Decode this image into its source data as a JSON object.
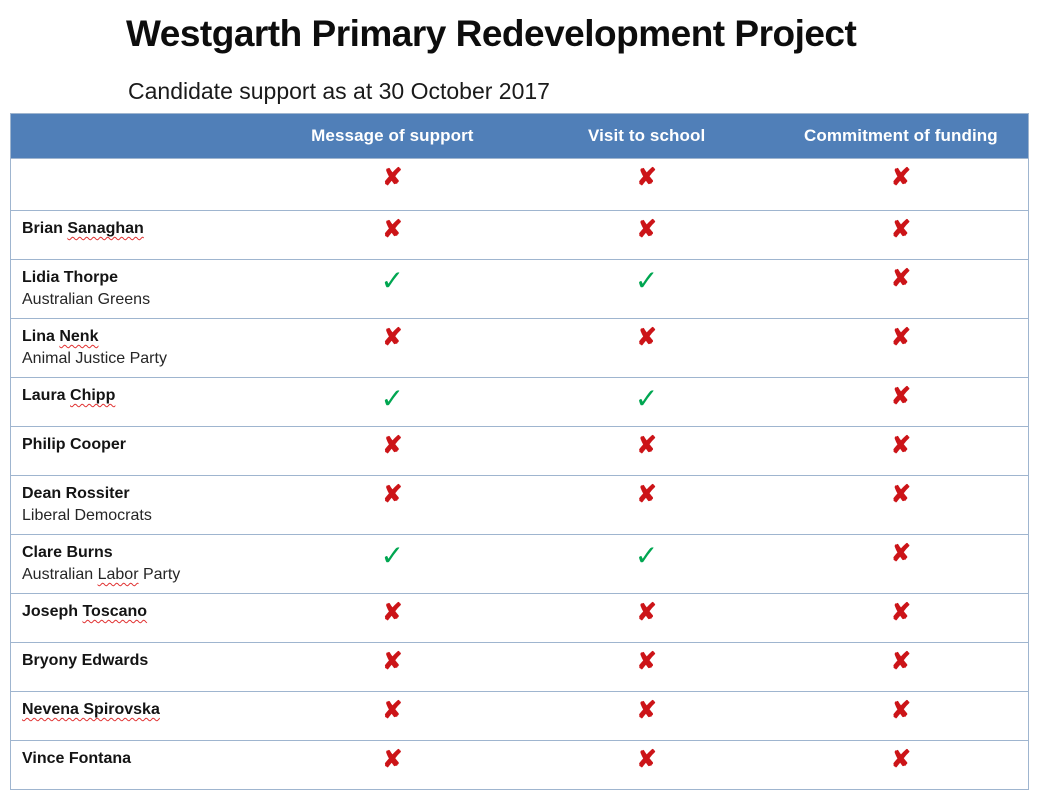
{
  "slide": {
    "title": "Westgarth Primary Redevelopment Project",
    "subtitle": "Candidate support as at 30 October 2017"
  },
  "table": {
    "columns": [
      "Message of support",
      "Visit to school",
      "Commitment of funding"
    ],
    "marks": {
      "check": "✓",
      "cross": "✘"
    },
    "colors": {
      "header_bg": "#507FB8",
      "header_text": "#FFFFFF",
      "border": "#9FB5CF",
      "check": "#00A651",
      "cross": "#CC1418",
      "spellcheck_underline": "#E03030"
    },
    "rows": [
      {
        "name": "",
        "party": "",
        "marks": [
          "cross",
          "cross",
          "cross"
        ]
      },
      {
        "name": "Brian Sanaghan",
        "wavy": "Sanaghan",
        "party": "",
        "marks": [
          "cross",
          "cross",
          "cross"
        ]
      },
      {
        "name": "Lidia Thorpe",
        "party": "Australian Greens",
        "marks": [
          "check",
          "check",
          "cross"
        ]
      },
      {
        "name": "Lina Nenk",
        "wavy": "Nenk",
        "party": "Animal Justice Party",
        "marks": [
          "cross",
          "cross",
          "cross"
        ]
      },
      {
        "name": "Laura Chipp",
        "wavy": "Chipp",
        "party": "",
        "marks": [
          "check",
          "check",
          "cross"
        ]
      },
      {
        "name": "Philip Cooper",
        "party": "",
        "marks": [
          "cross",
          "cross",
          "cross"
        ]
      },
      {
        "name": "Dean Rossiter",
        "party": "Liberal Democrats",
        "marks": [
          "cross",
          "cross",
          "cross"
        ]
      },
      {
        "name": "Clare Burns",
        "party": "Australian Labor Party",
        "party_wavy": "Labor",
        "marks": [
          "check",
          "check",
          "cross"
        ]
      },
      {
        "name": "Joseph Toscano",
        "wavy": "Toscano",
        "party": "",
        "marks": [
          "cross",
          "cross",
          "cross"
        ]
      },
      {
        "name": "Bryony Edwards",
        "party": "",
        "marks": [
          "cross",
          "cross",
          "cross"
        ]
      },
      {
        "name": "Nevena Spirovska",
        "wavy": "Nevena Spirovska",
        "party": "",
        "marks": [
          "cross",
          "cross",
          "cross"
        ]
      },
      {
        "name": "Vince Fontana",
        "party": "",
        "marks": [
          "cross",
          "cross",
          "cross"
        ]
      }
    ]
  }
}
